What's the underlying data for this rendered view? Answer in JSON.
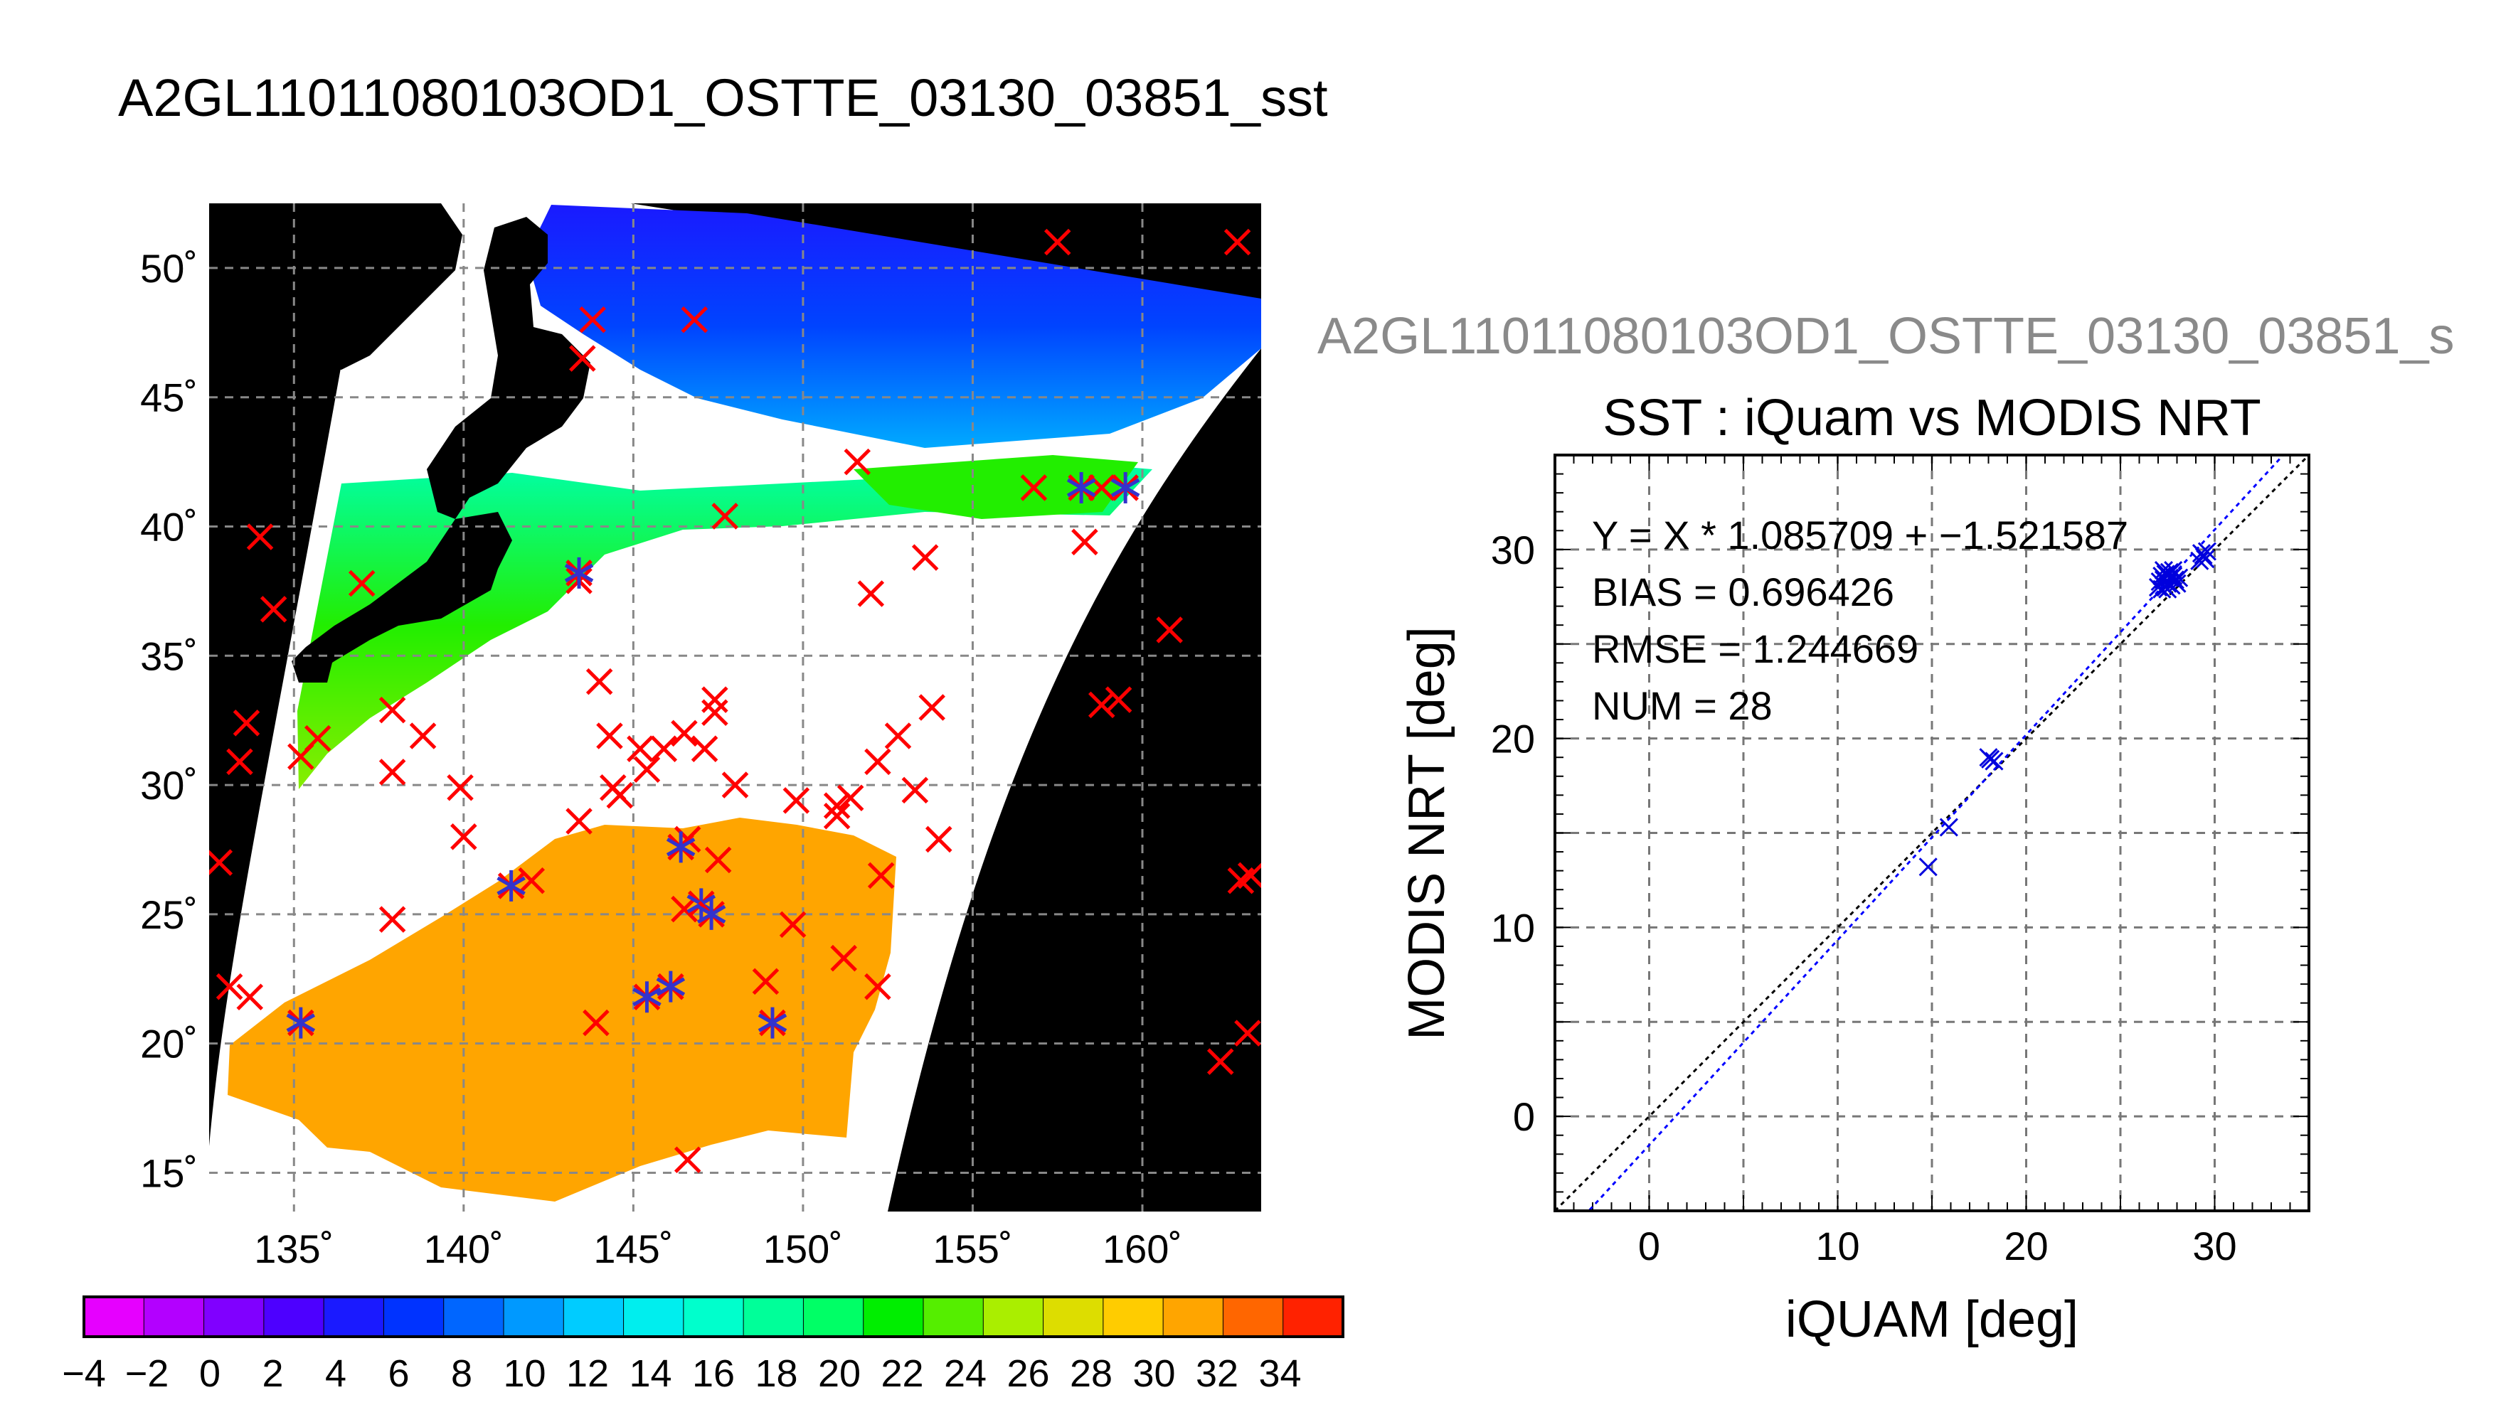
{
  "page": {
    "title": "A2GL11011080103OD1_OSTTE_03130_03851_sst",
    "subtitle": "A2GL11011080103OD1_OSTTE_03130_03851_s"
  },
  "colors": {
    "background": "#ffffff",
    "map_background": "#000000",
    "land_and_cloud": "#ffffff",
    "insitu_marker": "#ff0000",
    "matchup_marker": "#3333cc",
    "scatter_marker": "#0000dd",
    "fit_line": "#0000ff",
    "identity_line": "#000000",
    "grid": "#888888"
  },
  "chart_data": [
    {
      "type": "heatmap",
      "title": "A2GL11011080103OD1_OSTTE_03130_03851_sst",
      "xticks": [
        "135˚",
        "140˚",
        "145˚",
        "150˚",
        "155˚",
        "160˚"
      ],
      "xtick_values": [
        135,
        140,
        145,
        150,
        155,
        160
      ],
      "yticks": [
        "50˚",
        "45˚",
        "40˚",
        "35˚",
        "30˚",
        "25˚",
        "20˚",
        "15˚"
      ],
      "ytick_values": [
        50,
        45,
        40,
        35,
        30,
        25,
        20,
        15
      ],
      "xlim": [
        132.5,
        163.5
      ],
      "ylim": [
        13.5,
        52.5
      ],
      "grid": true,
      "colorbar": {
        "labels": [
          "-4",
          "-2",
          "0",
          "2",
          "4",
          "6",
          "8",
          "10",
          "12",
          "14",
          "16",
          "18",
          "20",
          "22",
          "24",
          "26",
          "28",
          "30",
          "32",
          "34"
        ],
        "range": [
          -4,
          36
        ],
        "step": 2,
        "colors": [
          "#e600ff",
          "#b300ff",
          "#8000ff",
          "#4d00ff",
          "#1a1aff",
          "#0033ff",
          "#0066ff",
          "#0099ff",
          "#00ccff",
          "#00eeee",
          "#00ffcc",
          "#00ff99",
          "#00ff66",
          "#00ee00",
          "#55ee00",
          "#aaee00",
          "#dddd00",
          "#ffcc00",
          "#ffa500",
          "#ff6600",
          "#ff2200"
        ]
      },
      "sst_regions": [
        {
          "name": "northern",
          "sst": 5
        },
        {
          "name": "mid-latitude",
          "sst": 17
        },
        {
          "name": "southern",
          "sst": 29
        }
      ],
      "insitu_points": [
        [
          157.5,
          51.0
        ],
        [
          162.8,
          51.0
        ],
        [
          143.8,
          48.0
        ],
        [
          146.8,
          48.0
        ],
        [
          143.5,
          46.5
        ],
        [
          151.6,
          42.5
        ],
        [
          156.8,
          41.5
        ],
        [
          158.8,
          41.5
        ],
        [
          134.0,
          39.6
        ],
        [
          137.0,
          37.8
        ],
        [
          143.4,
          37.9
        ],
        [
          147.7,
          40.4
        ],
        [
          152.0,
          37.4
        ],
        [
          153.6,
          38.8
        ],
        [
          158.3,
          39.4
        ],
        [
          160.8,
          36.0
        ],
        [
          134.4,
          36.8
        ],
        [
          144.0,
          34.0
        ],
        [
          147.4,
          33.3
        ],
        [
          147.4,
          32.8
        ],
        [
          153.8,
          33.0
        ],
        [
          158.8,
          33.1
        ],
        [
          159.3,
          33.3
        ],
        [
          133.6,
          32.4
        ],
        [
          135.7,
          31.8
        ],
        [
          137.9,
          32.9
        ],
        [
          138.8,
          31.9
        ],
        [
          144.3,
          31.9
        ],
        [
          145.2,
          31.4
        ],
        [
          145.9,
          31.4
        ],
        [
          146.5,
          32.0
        ],
        [
          147.1,
          31.4
        ],
        [
          152.8,
          31.9
        ],
        [
          133.4,
          30.9
        ],
        [
          135.2,
          31.1
        ],
        [
          137.9,
          30.5
        ],
        [
          139.9,
          29.9
        ],
        [
          144.4,
          29.9
        ],
        [
          145.4,
          30.6
        ],
        [
          148.0,
          30.0
        ],
        [
          149.8,
          29.4
        ],
        [
          151.0,
          29.2
        ],
        [
          151.4,
          29.5
        ],
        [
          152.2,
          30.9
        ],
        [
          153.3,
          29.8
        ],
        [
          140.0,
          28.0
        ],
        [
          143.4,
          28.6
        ],
        [
          144.6,
          29.6
        ],
        [
          151.0,
          28.8
        ],
        [
          154.0,
          27.9
        ],
        [
          132.8,
          27.0
        ],
        [
          142.0,
          26.3
        ],
        [
          146.6,
          27.9
        ],
        [
          147.5,
          27.1
        ],
        [
          152.3,
          26.5
        ],
        [
          162.9,
          26.3
        ],
        [
          163.2,
          26.5
        ],
        [
          137.9,
          24.8
        ],
        [
          146.5,
          25.2
        ],
        [
          149.7,
          24.6
        ],
        [
          151.2,
          23.3
        ],
        [
          133.1,
          22.2
        ],
        [
          133.7,
          21.8
        ],
        [
          148.9,
          22.4
        ],
        [
          152.2,
          22.2
        ],
        [
          143.9,
          20.8
        ],
        [
          163.1,
          20.4
        ],
        [
          162.3,
          19.3
        ],
        [
          146.6,
          15.5
        ]
      ],
      "matchup_points": [
        [
          135.2,
          20.8
        ],
        [
          141.4,
          26.1
        ],
        [
          143.4,
          38.2
        ],
        [
          145.4,
          21.8
        ],
        [
          146.1,
          22.2
        ],
        [
          146.4,
          27.6
        ],
        [
          147.0,
          25.4
        ],
        [
          147.3,
          25.0
        ],
        [
          149.1,
          20.8
        ],
        [
          158.2,
          41.5
        ],
        [
          159.5,
          41.5
        ]
      ]
    },
    {
      "type": "scatter",
      "title": "SST : iQuam vs MODIS NRT",
      "xlabel": "iQUAM [deg]",
      "ylabel": "MODIS NRT [deg]",
      "xlim": [
        -5,
        35
      ],
      "ylim": [
        -5,
        35
      ],
      "xticks": [
        0,
        10,
        20,
        30
      ],
      "yticks": [
        0,
        10,
        20,
        30
      ],
      "grid": true,
      "annotations": [
        "Y = X * 1.085709 + −1.521587",
        "BIAS = 0.696426",
        "RMSE = 1.244669",
        "NUM = 28"
      ],
      "fit": {
        "slope": 1.085709,
        "intercept": -1.521587
      },
      "identity_line": true,
      "points": [
        [
          14.8,
          13.2
        ],
        [
          15.9,
          15.3
        ],
        [
          18.0,
          19.0
        ],
        [
          18.3,
          18.8
        ],
        [
          27.0,
          28.0
        ],
        [
          27.2,
          27.9
        ],
        [
          27.3,
          28.4
        ],
        [
          27.4,
          28.7
        ],
        [
          27.5,
          28.2
        ],
        [
          27.6,
          28.5
        ],
        [
          27.7,
          28.1
        ],
        [
          27.5,
          27.9
        ],
        [
          27.8,
          28.6
        ],
        [
          27.3,
          28.9
        ],
        [
          27.6,
          28.8
        ],
        [
          29.2,
          29.4
        ],
        [
          29.4,
          29.7
        ],
        [
          29.5,
          29.5
        ],
        [
          29.6,
          29.9
        ],
        [
          27.1,
          28.3
        ],
        [
          27.9,
          28.4
        ],
        [
          28.0,
          28.2
        ],
        [
          27.4,
          28.0
        ],
        [
          27.8,
          28.9
        ],
        [
          28.1,
          28.5
        ],
        [
          29.3,
          29.8
        ],
        [
          18.1,
          18.9
        ],
        [
          27.2,
          28.6
        ]
      ]
    }
  ]
}
